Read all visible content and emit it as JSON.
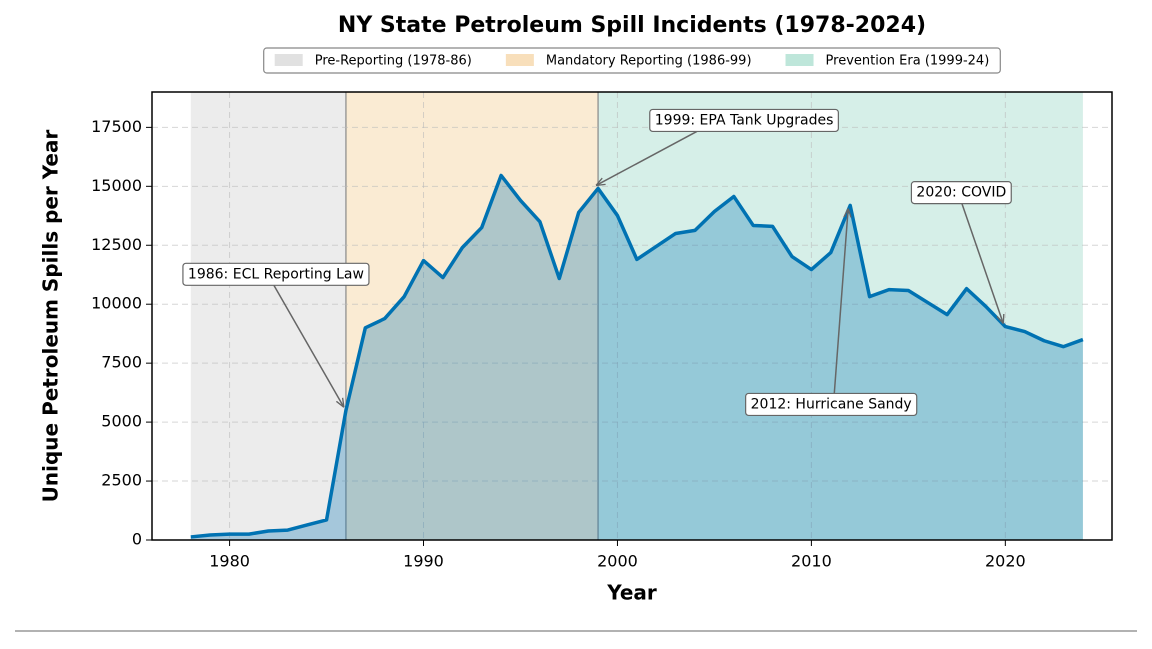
{
  "chart_data": {
    "type": "line",
    "title": "NY State Petroleum Spill Incidents (1978-2024)",
    "xlabel": "Year",
    "ylabel": "Unique Petroleum Spills per Year",
    "x": [
      1978,
      1979,
      1980,
      1981,
      1982,
      1983,
      1984,
      1985,
      1986,
      1987,
      1988,
      1989,
      1990,
      1991,
      1992,
      1993,
      1994,
      1995,
      1996,
      1997,
      1998,
      1999,
      2000,
      2001,
      2002,
      2003,
      2004,
      2005,
      2006,
      2007,
      2008,
      2009,
      2010,
      2011,
      2012,
      2013,
      2014,
      2015,
      2016,
      2017,
      2018,
      2019,
      2020,
      2021,
      2022,
      2023,
      2024
    ],
    "series": [
      {
        "name": "Unique Petroleum Spills",
        "color": "#0072b2",
        "values": [
          130,
          210,
          250,
          250,
          380,
          420,
          640,
          850,
          5500,
          9000,
          9390,
          10320,
          11850,
          11130,
          12400,
          13250,
          15460,
          14400,
          13500,
          11090,
          13890,
          14910,
          13760,
          11900,
          12450,
          13000,
          13130,
          13930,
          14570,
          13340,
          13300,
          12020,
          11470,
          12190,
          14190,
          10320,
          10620,
          10580,
          10070,
          9560,
          10660,
          9900,
          9050,
          8840,
          8450,
          8200,
          8500
        ]
      }
    ],
    "spans": [
      {
        "name": "Pre-Reporting (1978-86)",
        "start": 1978,
        "end": 1986,
        "color": "#d4d4d4"
      },
      {
        "name": "Mandatory Reporting (1986-99)",
        "start": 1986,
        "end": 1999,
        "color": "#f5d29e"
      },
      {
        "name": "Prevention Era (1999-24)",
        "start": 1999,
        "end": 2024,
        "color": "#a3dccb"
      }
    ],
    "annotations": [
      {
        "text": "1986: ECL Reporting Law",
        "x": 1986
      },
      {
        "text": "1999: EPA Tank Upgrades",
        "x": 1999
      },
      {
        "text": "2012: Hurricane Sandy",
        "x": 2012
      },
      {
        "text": "2020: COVID",
        "x": 2020
      }
    ],
    "xlim": [
      1976,
      2025.5
    ],
    "ylim": [
      0,
      19000
    ],
    "xticks": [
      1980,
      1990,
      2000,
      2010,
      2020
    ],
    "yticks": [
      0,
      2500,
      5000,
      7500,
      10000,
      12500,
      15000,
      17500
    ],
    "grid": true,
    "legend": "top"
  }
}
